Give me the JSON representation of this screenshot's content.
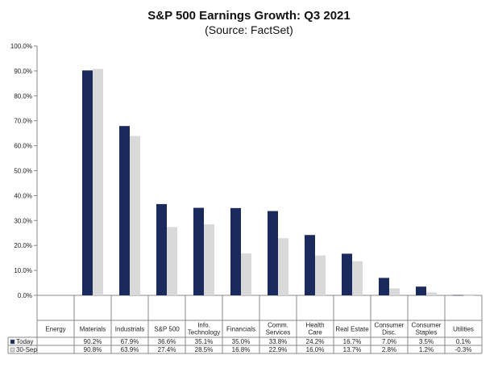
{
  "chart_data": {
    "type": "bar",
    "title": "S&P 500 Earnings Growth: Q3 2021",
    "subtitle": "(Source: FactSet)",
    "categories": [
      [
        "Energy"
      ],
      [
        "Materials"
      ],
      [
        "Industrials"
      ],
      [
        "S&P 500"
      ],
      [
        "Info.",
        "Technology"
      ],
      [
        "Financials"
      ],
      [
        "Comm.",
        "Services"
      ],
      [
        "Health",
        "Care"
      ],
      [
        "Real Estate"
      ],
      [
        "Consumer",
        "Disc."
      ],
      [
        "Consumer",
        "Staples"
      ],
      [
        "Utilities"
      ]
    ],
    "series": [
      {
        "name": "Today",
        "color": "#1b2a5c",
        "values": [
          null,
          90.2,
          67.9,
          36.6,
          35.1,
          35.0,
          33.8,
          24.2,
          16.7,
          7.0,
          3.5,
          0.1
        ],
        "labels": [
          "",
          "90.2%",
          "67.9%",
          "36.6%",
          "35.1%",
          "35.0%",
          "33.8%",
          "24.2%",
          "16.7%",
          "7.0%",
          "3.5%",
          "0.1%"
        ]
      },
      {
        "name": "30-Sep",
        "color": "#d9d9d9",
        "values": [
          null,
          90.8,
          63.9,
          27.4,
          28.5,
          16.8,
          22.9,
          16.0,
          13.7,
          2.8,
          1.2,
          -0.3
        ],
        "labels": [
          "",
          "90.8%",
          "63.9%",
          "27.4%",
          "28.5%",
          "16.8%",
          "22.9%",
          "16.0%",
          "13.7%",
          "2.8%",
          "1.2%",
          "-0.3%"
        ]
      }
    ],
    "ylim": [
      0,
      100
    ],
    "yticks": [
      0,
      10,
      20,
      30,
      40,
      50,
      60,
      70,
      80,
      90,
      100
    ],
    "ytick_labels": [
      "0.0%",
      "10.0%",
      "20.0%",
      "30.0%",
      "40.0%",
      "50.0%",
      "60.0%",
      "70.0%",
      "80.0%",
      "90.0%",
      "100.0%"
    ],
    "grid": false,
    "data_table": true,
    "legend_placement": "data-table"
  }
}
